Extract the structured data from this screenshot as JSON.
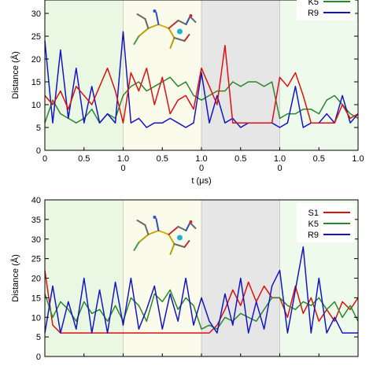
{
  "chart_data": [
    {
      "type": "line",
      "panel": "top",
      "ylabel": "Distance (Å)",
      "xlabel": "t (μs)",
      "ylim": [
        0,
        35
      ],
      "yticks": [
        "0",
        "5",
        "10",
        "15",
        "20",
        "25",
        "30",
        "35"
      ],
      "segments": 4,
      "segment_xlim": [
        0,
        1
      ],
      "segment_shading": [
        "#eaf8e3",
        "#fbfbeb",
        "#e6e6e6",
        "#eefbec"
      ],
      "xtick_labels": [
        "0",
        "0.5",
        "1.0\n0",
        "0.5",
        "1.0\n0",
        "0.5",
        "1.0\n0",
        "0.5",
        "1.0"
      ],
      "legend": {
        "position": "top-right"
      },
      "series": [
        {
          "name": "K5",
          "color": "#2a8a2a",
          "x": [
            0.0,
            0.1,
            0.2,
            0.3,
            0.4,
            0.5,
            0.6,
            0.7,
            0.8,
            0.9,
            1.0,
            1.1,
            1.2,
            1.3,
            1.4,
            1.5,
            1.6,
            1.7,
            1.8,
            1.9,
            2.0,
            2.1,
            2.2,
            2.3,
            2.4,
            2.5,
            2.6,
            2.7,
            2.8,
            2.9,
            3.0,
            3.1,
            3.2,
            3.3,
            3.4,
            3.5,
            3.6,
            3.7,
            3.8,
            3.9,
            4.0
          ],
          "y": [
            6,
            11,
            8,
            7,
            6,
            7,
            9,
            6,
            8,
            7,
            12,
            14,
            15,
            13,
            14,
            15,
            16,
            14,
            15,
            12,
            11,
            12,
            13,
            13,
            15,
            14,
            15,
            15,
            14,
            15,
            7,
            8,
            8,
            9,
            9,
            8,
            11,
            12,
            10,
            8,
            7
          ]
        },
        {
          "name": "R9",
          "color": "#1515c8",
          "x": [
            0.0,
            0.1,
            0.2,
            0.3,
            0.4,
            0.5,
            0.6,
            0.7,
            0.8,
            0.9,
            1.0,
            1.1,
            1.2,
            1.3,
            1.4,
            1.5,
            1.6,
            1.7,
            1.8,
            1.9,
            2.0,
            2.1,
            2.2,
            2.3,
            2.4,
            2.5,
            2.6,
            2.7,
            2.8,
            2.9,
            3.0,
            3.1,
            3.2,
            3.3,
            3.4,
            3.5,
            3.6,
            3.7,
            3.8,
            3.9,
            4.0
          ],
          "y": [
            24,
            6,
            22,
            7,
            18,
            6,
            14,
            6,
            8,
            6,
            26,
            6,
            7,
            5,
            6,
            6,
            7,
            6,
            5,
            6,
            17,
            6,
            12,
            6,
            7,
            5,
            6,
            6,
            6,
            6,
            5,
            6,
            14,
            5,
            6,
            6,
            8,
            6,
            12,
            6,
            8
          ]
        },
        {
          "name": "",
          "color": "#e01010",
          "x": [
            0.0,
            0.1,
            0.2,
            0.3,
            0.4,
            0.5,
            0.6,
            0.7,
            0.8,
            0.9,
            1.0,
            1.1,
            1.2,
            1.3,
            1.4,
            1.5,
            1.6,
            1.7,
            1.8,
            1.9,
            2.0,
            2.1,
            2.2,
            2.3,
            2.4,
            2.5,
            2.6,
            2.7,
            2.8,
            2.9,
            3.0,
            3.1,
            3.2,
            3.3,
            3.4,
            3.5,
            3.6,
            3.7,
            3.8,
            3.9,
            4.0
          ],
          "y": [
            12,
            10,
            13,
            9,
            14,
            12,
            10,
            14,
            18,
            13,
            6,
            17,
            13,
            18,
            10,
            16,
            8,
            11,
            12,
            9,
            18,
            14,
            10,
            23,
            6,
            6,
            6,
            6,
            6,
            6,
            16,
            14,
            17,
            12,
            6,
            6,
            6,
            6,
            10,
            7,
            8
          ]
        }
      ]
    },
    {
      "type": "line",
      "panel": "bottom",
      "ylabel": "Distance (Å)",
      "ylim": [
        0,
        40
      ],
      "yticks": [
        "0",
        "5",
        "10",
        "15",
        "20",
        "25",
        "30",
        "35",
        "40"
      ],
      "segments": 4,
      "segment_xlim": [
        0,
        1
      ],
      "segment_shading": [
        "#eaf8e3",
        "#fbfbeb",
        "#e6e6e6",
        "#eefbec"
      ],
      "legend": {
        "position": "top-right"
      },
      "series": [
        {
          "name": "S1",
          "color": "#e01010",
          "x": [
            0.0,
            0.1,
            0.2,
            0.3,
            0.4,
            0.5,
            0.6,
            0.7,
            0.8,
            0.9,
            1.0,
            1.1,
            1.2,
            1.3,
            1.4,
            1.5,
            1.6,
            1.7,
            1.8,
            1.9,
            2.0,
            2.1,
            2.2,
            2.3,
            2.4,
            2.5,
            2.6,
            2.7,
            2.8,
            2.9,
            3.0,
            3.1,
            3.2,
            3.3,
            3.4,
            3.5,
            3.6,
            3.7,
            3.8,
            3.9,
            4.0
          ],
          "y": [
            22,
            8,
            6,
            6,
            6,
            6,
            6,
            6,
            6,
            6,
            6,
            6,
            6,
            6,
            6,
            6,
            6,
            6,
            6,
            6,
            6,
            6,
            8,
            12,
            17,
            13,
            19,
            14,
            18,
            15,
            15,
            10,
            18,
            11,
            15,
            9,
            12,
            9,
            14,
            12,
            15
          ]
        },
        {
          "name": "K5",
          "color": "#2a8a2a",
          "x": [
            0.0,
            0.1,
            0.2,
            0.3,
            0.4,
            0.5,
            0.6,
            0.7,
            0.8,
            0.9,
            1.0,
            1.1,
            1.2,
            1.3,
            1.4,
            1.5,
            1.6,
            1.7,
            1.8,
            1.9,
            2.0,
            2.1,
            2.2,
            2.3,
            2.4,
            2.5,
            2.6,
            2.7,
            2.8,
            2.9,
            3.0,
            3.1,
            3.2,
            3.3,
            3.4,
            3.5,
            3.6,
            3.7,
            3.8,
            3.9,
            4.0
          ],
          "y": [
            16,
            10,
            14,
            12,
            9,
            14,
            11,
            12,
            9,
            13,
            9,
            15,
            13,
            9,
            16,
            14,
            17,
            12,
            15,
            13,
            7,
            8,
            7,
            10,
            9,
            11,
            10,
            9,
            12,
            15,
            15,
            13,
            12,
            14,
            13,
            15,
            12,
            14,
            10,
            13,
            9
          ]
        },
        {
          "name": "R9",
          "color": "#1515c8",
          "x": [
            0.0,
            0.1,
            0.2,
            0.3,
            0.4,
            0.5,
            0.6,
            0.7,
            0.8,
            0.9,
            1.0,
            1.1,
            1.2,
            1.3,
            1.4,
            1.5,
            1.6,
            1.7,
            1.8,
            1.9,
            2.0,
            2.1,
            2.2,
            2.3,
            2.4,
            2.5,
            2.6,
            2.7,
            2.8,
            2.9,
            3.0,
            3.1,
            3.2,
            3.3,
            3.4,
            3.5,
            3.6,
            3.7,
            3.8,
            3.9,
            4.0
          ],
          "y": [
            6,
            18,
            6,
            14,
            7,
            20,
            6,
            17,
            6,
            19,
            8,
            20,
            7,
            12,
            18,
            7,
            16,
            9,
            20,
            8,
            15,
            9,
            6,
            16,
            8,
            20,
            6,
            14,
            7,
            18,
            22,
            6,
            17,
            28,
            6,
            20,
            6,
            10,
            6,
            6,
            6
          ]
        }
      ]
    }
  ]
}
